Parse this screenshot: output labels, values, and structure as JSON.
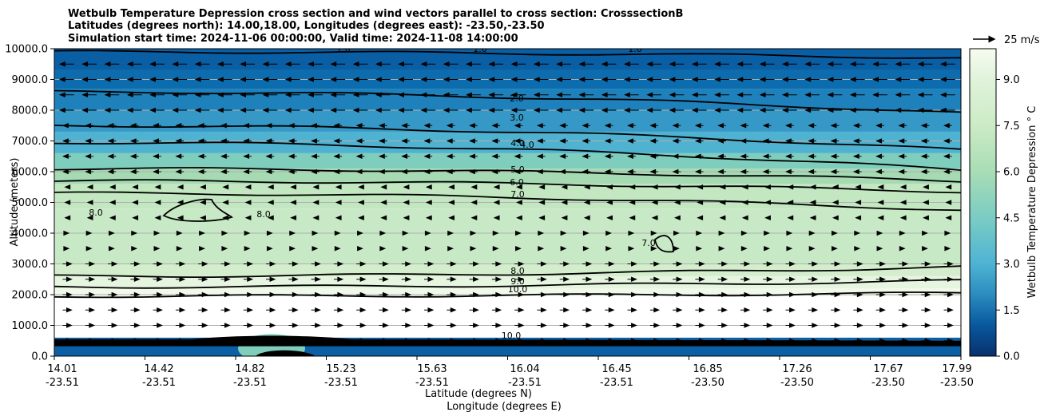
{
  "chart_data": {
    "type": "contour",
    "title_lines": [
      "Wetbulb Temperature Depression cross section and wind vectors parallel to cross section: CrosssectionB",
      "Latitudes (degrees north): 14.00,18.00, Longitudes (degrees east): -23.50,-23.50",
      "Simulation start time: 2024-11-06 00:00:00, Valid time: 2024-11-08 14:00:00"
    ],
    "xlabel_lines": [
      "Latitude (degrees N)",
      "Longitude (degrees E)"
    ],
    "ylabel": "Altitude (meters)",
    "ylim": [
      0,
      10000
    ],
    "y_ticks": [
      "0.0",
      "1000.0",
      "2000.0",
      "3000.0",
      "4000.0",
      "5000.0",
      "6000.0",
      "7000.0",
      "8000.0",
      "9000.0",
      "10000.0"
    ],
    "x_ticks": [
      {
        "lat": "14.01",
        "lon": "-23.51"
      },
      {
        "lat": "14.42",
        "lon": "-23.51"
      },
      {
        "lat": "14.82",
        "lon": "-23.51"
      },
      {
        "lat": "15.23",
        "lon": "-23.51"
      },
      {
        "lat": "15.63",
        "lon": "-23.51"
      },
      {
        "lat": "16.04",
        "lon": "-23.51"
      },
      {
        "lat": "16.45",
        "lon": "-23.51"
      },
      {
        "lat": "16.85",
        "lon": "-23.50"
      },
      {
        "lat": "17.26",
        "lon": "-23.50"
      },
      {
        "lat": "17.67",
        "lon": "-23.50"
      },
      {
        "lat": "17.99",
        "lon": "-23.50"
      }
    ],
    "grid": "horizontal",
    "colorbar": {
      "label": "Wetbulb Temperature Depression ° C",
      "range": [
        0,
        10
      ],
      "ticks": [
        "0.0",
        "1.5",
        "3.0",
        "4.5",
        "6.0",
        "7.5",
        "9.0"
      ],
      "colormap": "GnBu"
    },
    "wind_key": {
      "label": "25 m/s"
    },
    "contour_labels": [
      "1.0",
      "1.0",
      "1.0",
      "2.0",
      "3.0",
      "4.0",
      "4.0",
      "5.0",
      "6.0",
      "7.0",
      "8.0",
      "8.0",
      "7.0",
      "8.0",
      "9.0",
      "10.0",
      "10.0"
    ],
    "contour_levels": [
      1,
      2,
      3,
      4,
      5,
      6,
      7,
      8,
      9,
      10
    ],
    "contour_altitudes_m": {
      "1.0": 9900,
      "2.0": 8600,
      "3.0": 7500,
      "4.0": 6950,
      "5.0": 6100,
      "6.0": 5700,
      "7.0": 5300,
      "8.0": 2600,
      "9.0": 2250,
      "10.0": 1950
    }
  }
}
